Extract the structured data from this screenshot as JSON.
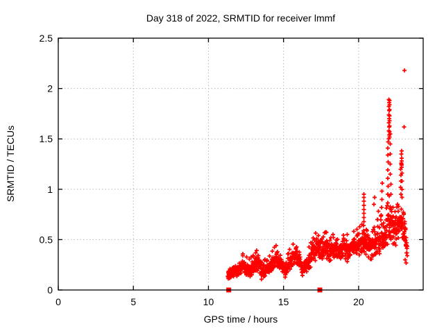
{
  "chart_data": {
    "type": "scatter",
    "title": "Day 318 of 2022, SRMTID for receiver lmmf",
    "xlabel": "GPS time / hours",
    "ylabel": "SRMTID / TECUs",
    "xlim": [
      0,
      24.3
    ],
    "ylim": [
      0,
      2.5
    ],
    "xticks": {
      "values": [
        0,
        5,
        10,
        15,
        20
      ],
      "labels": [
        "0",
        "5",
        "10",
        "15",
        "20"
      ]
    },
    "yticks": {
      "values": [
        0,
        0.5,
        1,
        1.5,
        2,
        2.5
      ],
      "labels": [
        "0",
        "0.5",
        "1",
        "1.5",
        "2",
        "2.5"
      ]
    },
    "grid": {
      "on": true,
      "style": "dashed",
      "color": "#b5b5b5"
    },
    "legend": {
      "visible": false
    },
    "marker": {
      "shape": "plus",
      "color": "#ff0000",
      "size": 7
    },
    "colors": {
      "marker": "#ff0000",
      "axis": "#000000",
      "background": "#ffffff"
    },
    "series_description": "Dense + marker band from 11.3h to 23.25h; [x, ymin, ymax] envelope read from plot",
    "band_envelope": [
      [
        11.3,
        0.1,
        0.2
      ],
      [
        11.6,
        0.12,
        0.24
      ],
      [
        12.0,
        0.13,
        0.28
      ],
      [
        12.35,
        0.16,
        0.33
      ],
      [
        12.7,
        0.1,
        0.26
      ],
      [
        13.0,
        0.14,
        0.32
      ],
      [
        13.35,
        0.18,
        0.38
      ],
      [
        13.6,
        0.08,
        0.28
      ],
      [
        13.9,
        0.12,
        0.26
      ],
      [
        14.2,
        0.15,
        0.33
      ],
      [
        14.5,
        0.22,
        0.42
      ],
      [
        14.8,
        0.15,
        0.35
      ],
      [
        15.1,
        0.12,
        0.27
      ],
      [
        15.4,
        0.18,
        0.36
      ],
      [
        15.7,
        0.25,
        0.45
      ],
      [
        16.0,
        0.22,
        0.42
      ],
      [
        16.3,
        0.12,
        0.28
      ],
      [
        16.6,
        0.16,
        0.36
      ],
      [
        16.9,
        0.25,
        0.48
      ],
      [
        17.2,
        0.3,
        0.55
      ],
      [
        17.5,
        0.24,
        0.46
      ],
      [
        17.8,
        0.3,
        0.55
      ],
      [
        18.1,
        0.22,
        0.46
      ],
      [
        18.4,
        0.3,
        0.56
      ],
      [
        18.7,
        0.26,
        0.5
      ],
      [
        19.0,
        0.3,
        0.56
      ],
      [
        19.3,
        0.27,
        0.5
      ],
      [
        19.6,
        0.3,
        0.54
      ],
      [
        19.9,
        0.32,
        0.58
      ],
      [
        20.2,
        0.34,
        0.62
      ],
      [
        20.4,
        0.35,
        0.6
      ],
      [
        20.6,
        0.3,
        0.55
      ],
      [
        20.9,
        0.28,
        0.55
      ],
      [
        21.1,
        0.32,
        0.62
      ],
      [
        21.4,
        0.35,
        0.72
      ],
      [
        21.7,
        0.36,
        0.68
      ],
      [
        21.9,
        0.4,
        0.8
      ],
      [
        22.05,
        0.45,
        0.9
      ],
      [
        22.2,
        0.44,
        0.82
      ],
      [
        22.45,
        0.4,
        0.75
      ],
      [
        22.65,
        0.45,
        0.85
      ],
      [
        22.85,
        0.45,
        0.9
      ],
      [
        23.0,
        0.38,
        0.72
      ],
      [
        23.15,
        0.3,
        0.55
      ],
      [
        23.25,
        0.28,
        0.48
      ]
    ],
    "spike_points": [
      [
        20.33,
        0.64
      ],
      [
        20.35,
        0.68
      ],
      [
        20.34,
        0.72
      ],
      [
        20.36,
        0.76
      ],
      [
        20.34,
        0.8
      ],
      [
        20.35,
        0.84
      ],
      [
        20.36,
        0.88
      ],
      [
        20.35,
        0.92
      ],
      [
        20.34,
        0.95
      ],
      [
        21.03,
        0.85
      ],
      [
        21.06,
        0.92
      ],
      [
        21.28,
        0.7
      ],
      [
        21.31,
        0.78
      ],
      [
        21.5,
        0.74
      ],
      [
        21.52,
        0.82
      ],
      [
        21.54,
        0.9
      ],
      [
        21.55,
        0.98
      ],
      [
        21.57,
        1.06
      ],
      [
        21.95,
        0.95
      ],
      [
        21.96,
        1.03
      ],
      [
        21.94,
        1.11
      ],
      [
        21.95,
        1.19
      ],
      [
        21.96,
        1.27
      ],
      [
        21.95,
        1.34
      ],
      [
        21.94,
        1.41
      ],
      [
        21.96,
        1.47
      ],
      [
        22.02,
        1.5
      ],
      [
        22.03,
        1.54
      ],
      [
        22.02,
        1.58
      ],
      [
        22.03,
        1.62
      ],
      [
        22.02,
        1.66
      ],
      [
        22.03,
        1.7
      ],
      [
        22.02,
        1.74
      ],
      [
        22.03,
        1.78
      ],
      [
        22.02,
        1.82
      ],
      [
        22.03,
        1.86
      ],
      [
        22.02,
        1.89
      ],
      [
        22.07,
        1.52
      ],
      [
        22.06,
        1.57
      ],
      [
        22.07,
        1.63
      ],
      [
        22.06,
        1.68
      ],
      [
        22.07,
        1.73
      ],
      [
        22.06,
        1.79
      ],
      [
        22.07,
        1.84
      ],
      [
        22.06,
        1.88
      ],
      [
        22.11,
        1.15
      ],
      [
        22.1,
        1.25
      ],
      [
        22.11,
        1.35
      ],
      [
        22.1,
        1.45
      ],
      [
        22.11,
        1.55
      ],
      [
        22.15,
        0.95
      ],
      [
        22.16,
        1.05
      ],
      [
        22.82,
        0.95
      ],
      [
        22.81,
        1.02
      ],
      [
        22.83,
        1.08
      ],
      [
        22.82,
        1.14
      ],
      [
        22.81,
        1.2
      ],
      [
        22.86,
        1.22
      ],
      [
        22.85,
        1.25
      ],
      [
        22.87,
        1.28
      ],
      [
        22.86,
        1.24
      ],
      [
        22.85,
        1.26
      ],
      [
        22.86,
        1.31
      ],
      [
        22.85,
        1.35
      ],
      [
        22.86,
        1.38
      ],
      [
        22.9,
        0.92
      ],
      [
        22.89,
        1.0
      ],
      [
        22.9,
        1.08
      ],
      [
        22.89,
        1.16
      ],
      [
        23.05,
        2.18
      ],
      [
        23.02,
        1.62
      ],
      [
        23.08,
        0.68
      ],
      [
        23.12,
        0.6
      ],
      [
        23.16,
        0.52
      ],
      [
        23.2,
        0.44
      ],
      [
        23.22,
        0.37
      ],
      [
        23.1,
        0.3
      ],
      [
        23.17,
        0.27
      ]
    ],
    "baseline_squares": [
      [
        11.35,
        0
      ],
      [
        17.42,
        0
      ]
    ]
  }
}
